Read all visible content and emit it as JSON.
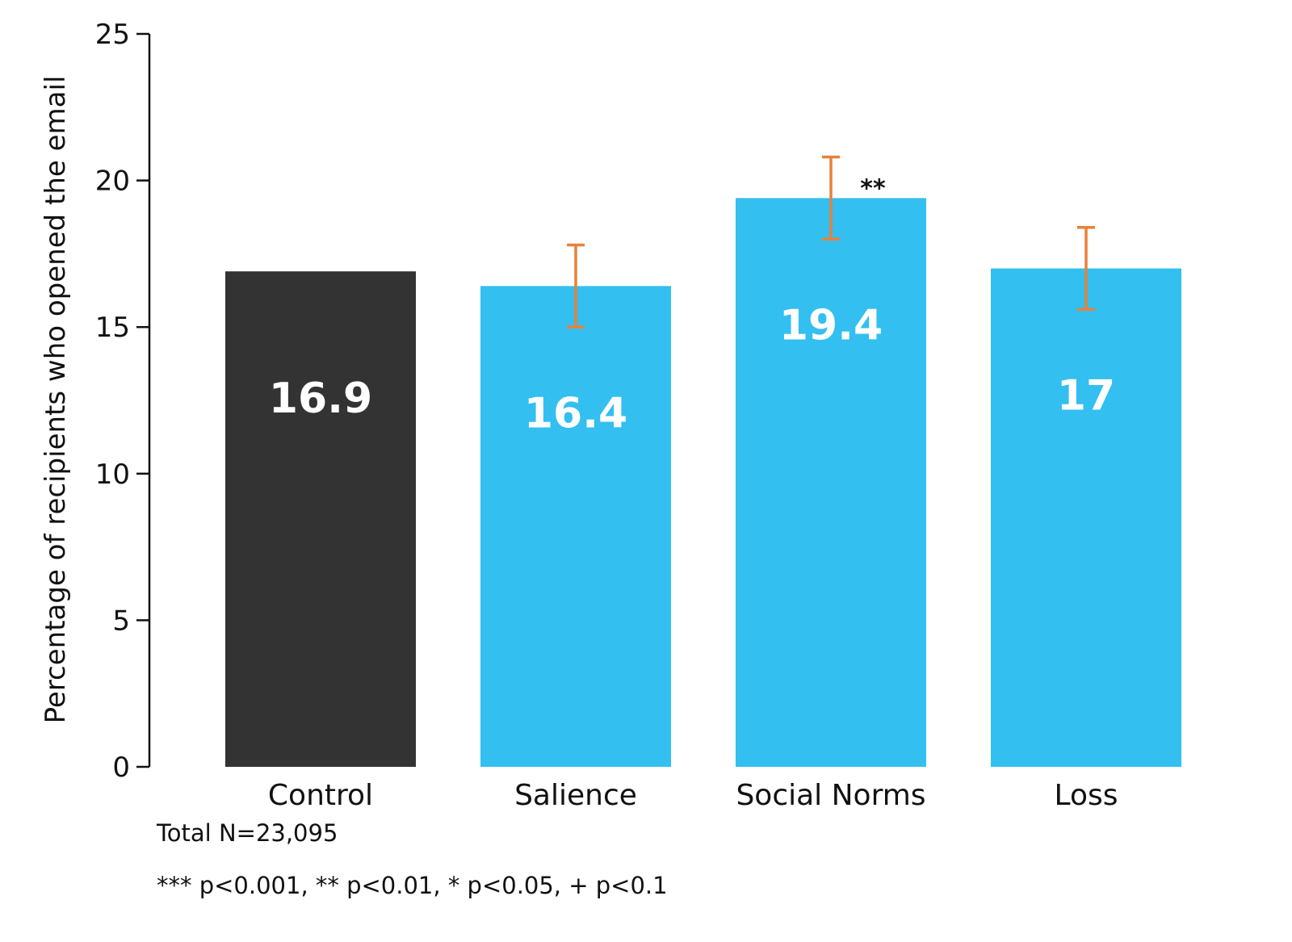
{
  "chart_data": {
    "type": "bar",
    "categories": [
      "Control",
      "Salience",
      "Social Norms",
      "Loss"
    ],
    "values": [
      16.9,
      16.4,
      19.4,
      17
    ],
    "value_labels": [
      "16.9",
      "16.4",
      "19.4",
      "17"
    ],
    "error_bars": [
      null,
      [
        15.0,
        17.8
      ],
      [
        18.0,
        20.8
      ],
      [
        15.6,
        18.4
      ]
    ],
    "significance": [
      "",
      "",
      "**",
      ""
    ],
    "ylabel": "Percentage of recipients who opened the email",
    "xlabel": "",
    "ylim": [
      0,
      25
    ],
    "yticks": [
      0,
      5,
      10,
      15,
      20,
      25
    ],
    "grid": false,
    "legend": "none"
  },
  "colors": {
    "control": "#333333",
    "treatment": "#33bff0",
    "error_bar": "#e8813a",
    "axis": "#111111"
  },
  "notes": {
    "total_n": "Total N=23,095",
    "significance_key": "*** p<0.001, ** p<0.01, * p<0.05, + p<0.1"
  }
}
